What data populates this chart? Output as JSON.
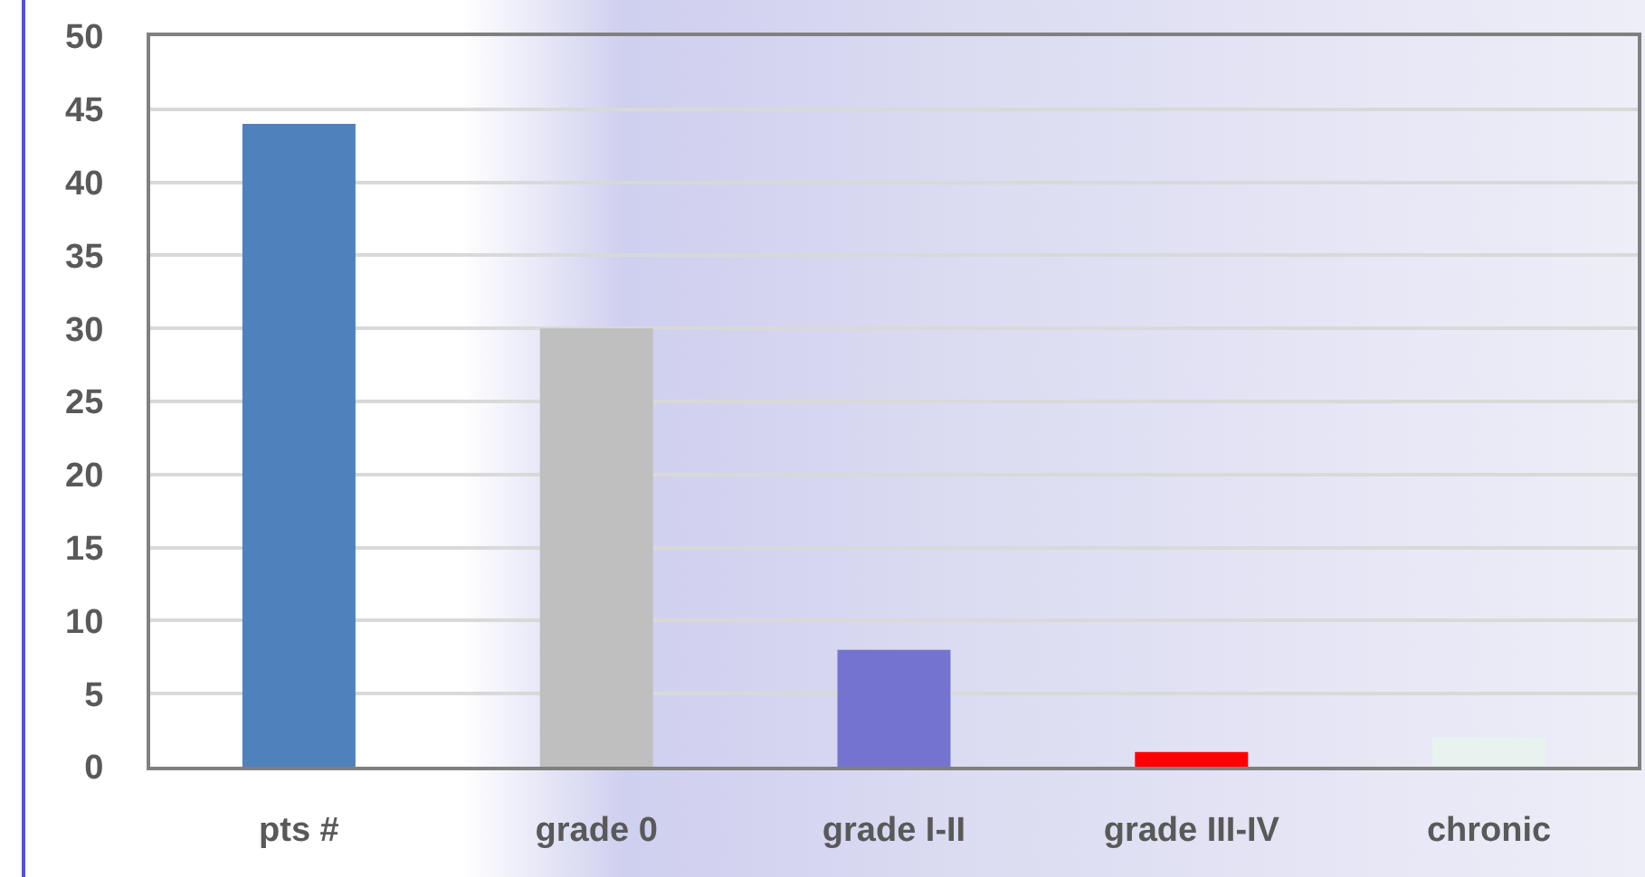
{
  "chart_data": {
    "type": "bar",
    "categories": [
      "pts #",
      "grade 0",
      "grade I-II",
      "grade III-IV",
      "chronic"
    ],
    "values": [
      44,
      30,
      8,
      1,
      2
    ],
    "colors": [
      "#4f81bd",
      "#bfbfbf",
      "#7474d0",
      "#ff0000",
      "#e8f3f0"
    ],
    "ylim": [
      0,
      50
    ],
    "yticks": [
      0,
      5,
      10,
      15,
      20,
      25,
      30,
      35,
      40,
      45,
      50
    ],
    "grid": "y"
  }
}
